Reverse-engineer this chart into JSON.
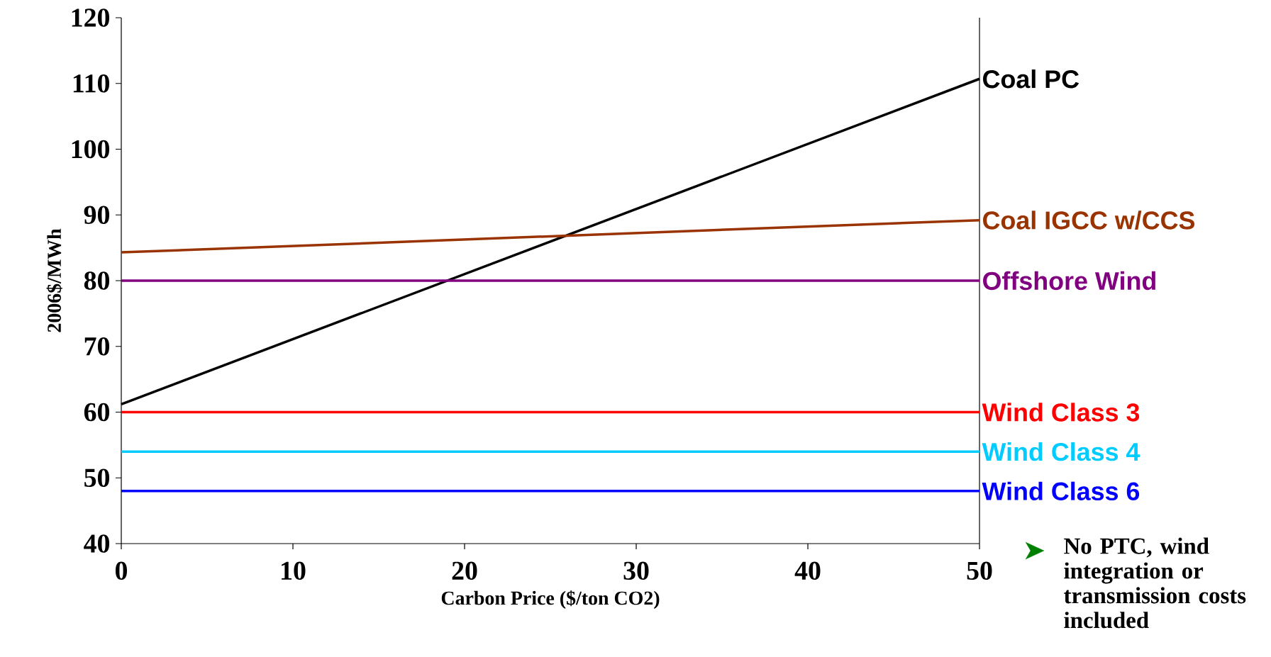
{
  "chart_data": {
    "type": "line",
    "xlabel": "Carbon Price ($/ton CO2)",
    "ylabel": "2006$/MWh",
    "x": [
      0,
      50
    ],
    "series": [
      {
        "name": "Coal PC",
        "color": "#000000",
        "values": [
          61.2,
          110.7
        ]
      },
      {
        "name": "Coal IGCC w/CCS",
        "color": "#993300",
        "values": [
          84.3,
          89.2
        ]
      },
      {
        "name": "Offshore Wind",
        "color": "#800080",
        "values": [
          80,
          80
        ]
      },
      {
        "name": "Wind Class 3",
        "color": "#ff0000",
        "values": [
          60,
          60
        ]
      },
      {
        "name": "Wind Class 4",
        "color": "#00ccff",
        "values": [
          54,
          54
        ]
      },
      {
        "name": "Wind Class 6",
        "color": "#0000ff",
        "values": [
          48,
          48
        ]
      }
    ],
    "xlim": [
      0,
      50
    ],
    "ylim": [
      40,
      120
    ],
    "xticks": [
      0,
      10,
      20,
      30,
      40,
      50
    ],
    "yticks": [
      40,
      50,
      60,
      70,
      80,
      90,
      100,
      110,
      120
    ],
    "annotations": [
      "No PTC, wind integration or transmission costs included"
    ]
  }
}
